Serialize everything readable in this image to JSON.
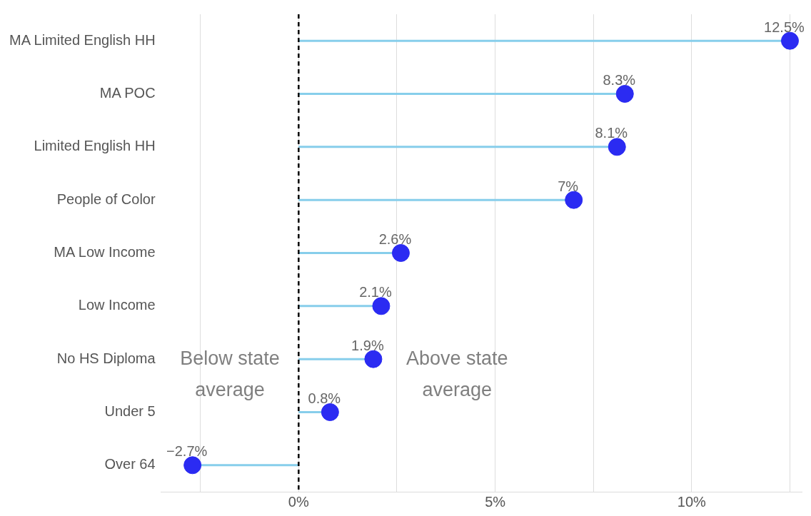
{
  "chart_data": {
    "type": "lollipop",
    "orientation": "horizontal",
    "categories": [
      "MA Limited English HH",
      "MA POC",
      "Limited English HH",
      "People of Color",
      "MA Low Income",
      "Low Income",
      "No HS Diploma",
      "Under 5",
      "Over 64"
    ],
    "values": [
      12.5,
      8.3,
      8.1,
      7,
      2.6,
      2.1,
      1.9,
      0.8,
      -2.7
    ],
    "value_labels": [
      "12.5%",
      "8.3%",
      "8.1%",
      "7%",
      "2.6%",
      "2.1%",
      "1.9%",
      "0.8%",
      "−2.7%"
    ],
    "color": "#2b2bf2",
    "xlim": [
      -3.5,
      12.8
    ],
    "xticks": [
      {
        "value": -2.5,
        "label": null
      },
      {
        "value": 0,
        "label": "0%"
      },
      {
        "value": 2.5,
        "label": null
      },
      {
        "value": 5,
        "label": "5%"
      },
      {
        "value": 7.5,
        "label": null
      },
      {
        "value": 10,
        "label": "10%"
      },
      {
        "value": 12.5,
        "label": null
      }
    ],
    "grid": "x",
    "legend": false,
    "marker": "circle",
    "ref_lines": [
      {
        "axis": "x",
        "value": 0,
        "label": null,
        "color": "#000000",
        "line_style": "dashed"
      }
    ],
    "annotations": [
      "Below state average",
      "Above state average"
    ]
  }
}
